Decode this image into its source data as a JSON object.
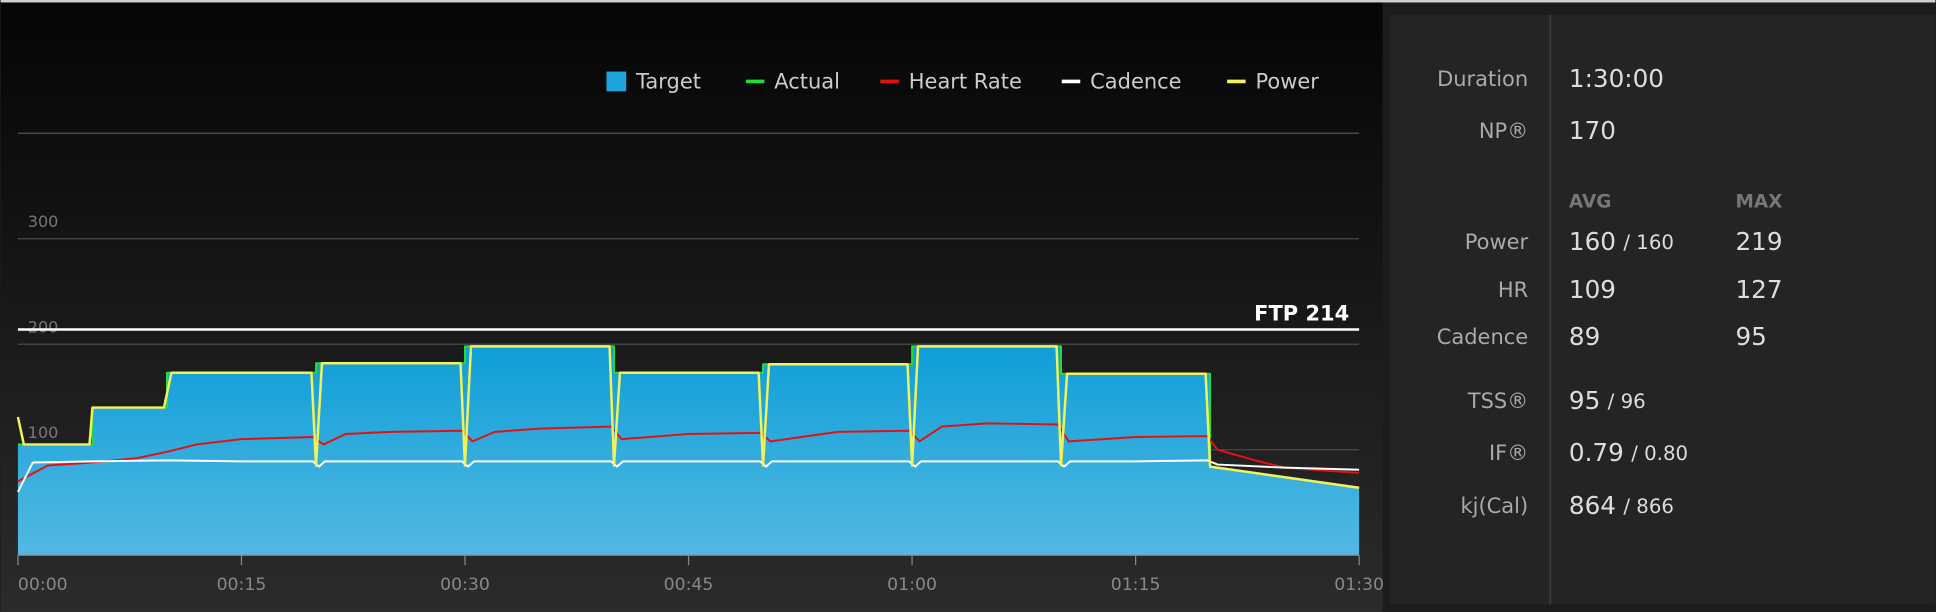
{
  "chart_data": {
    "type": "line",
    "xlim": [
      0,
      90
    ],
    "xticks": [
      {
        "value": 0,
        "label": "00:00"
      },
      {
        "value": 15,
        "label": "00:15"
      },
      {
        "value": 30,
        "label": "00:30"
      },
      {
        "value": 45,
        "label": "00:45"
      },
      {
        "value": 60,
        "label": "01:00"
      },
      {
        "value": 75,
        "label": "01:15"
      },
      {
        "value": 90,
        "label": "01:30"
      }
    ],
    "ylim": [
      0,
      400
    ],
    "yticks": [
      100,
      200,
      300
    ],
    "grid": true,
    "legend": "top-right",
    "ftp": {
      "value": 214,
      "label": "FTP 214"
    },
    "series": [
      {
        "name": "Target",
        "style": "area",
        "color": "#1ea2da",
        "x": [
          0,
          5,
          5,
          10,
          10,
          20,
          20,
          30,
          30,
          40,
          40,
          50,
          50,
          60,
          60,
          70,
          70,
          80,
          80,
          90
        ],
        "values": [
          105,
          105,
          140,
          140,
          173,
          173,
          182,
          182,
          198,
          198,
          173,
          173,
          181,
          181,
          198,
          198,
          172,
          172,
          84,
          64
        ]
      },
      {
        "name": "Actual",
        "style": "line",
        "color": "#22dd33",
        "x": [
          0,
          5,
          5,
          10,
          10,
          20,
          20,
          30,
          30,
          40,
          40,
          50,
          50,
          60,
          60,
          70,
          70,
          80,
          80,
          90
        ],
        "values": [
          105,
          105,
          140,
          140,
          173,
          173,
          182,
          182,
          198,
          198,
          173,
          173,
          181,
          181,
          198,
          198,
          172,
          172,
          84,
          64
        ]
      },
      {
        "name": "Heart Rate",
        "style": "line",
        "color": "#e31212",
        "x": [
          0,
          2,
          5,
          8,
          10,
          12,
          15,
          19.8,
          20.5,
          22,
          25,
          29.8,
          30.5,
          32,
          35,
          39.8,
          40.5,
          45,
          49.8,
          50.5,
          55,
          59.8,
          60.5,
          62,
          65,
          69.8,
          70.5,
          75,
          79.8,
          80.5,
          83,
          85,
          88,
          90
        ],
        "values": [
          70,
          85,
          88,
          92,
          98,
          105,
          110,
          112,
          105,
          115,
          117,
          118,
          108,
          117,
          120,
          122,
          110,
          115,
          116,
          108,
          117,
          118,
          108,
          122,
          125,
          124,
          108,
          112,
          113,
          100,
          90,
          83,
          80,
          78
        ]
      },
      {
        "name": "Cadence",
        "style": "line",
        "color": "#ffffff",
        "x": [
          0,
          1,
          5,
          10,
          15,
          19.8,
          20.2,
          20.6,
          25,
          29.8,
          30.2,
          30.6,
          35,
          39.8,
          40.2,
          40.6,
          45,
          49.8,
          50.2,
          50.6,
          55,
          59.8,
          60.2,
          60.6,
          65,
          69.8,
          70.2,
          70.6,
          75,
          79.8,
          80.5,
          85,
          90
        ],
        "values": [
          60,
          88,
          89,
          90,
          89,
          89,
          84,
          89,
          89,
          89,
          84,
          89,
          89,
          89,
          84,
          89,
          89,
          89,
          84,
          89,
          89,
          89,
          84,
          89,
          89,
          89,
          84,
          89,
          89,
          90,
          86,
          83,
          81
        ]
      },
      {
        "name": "Power",
        "style": "line",
        "color": "#f2f25a",
        "x": [
          0,
          0.4,
          4.8,
          5,
          9.8,
          10.3,
          19.7,
          20,
          20.4,
          29.7,
          30,
          30.4,
          39.7,
          40,
          40.4,
          49.7,
          50,
          50.4,
          59.7,
          60,
          60.4,
          69.7,
          70,
          70.4,
          79.7,
          80,
          90
        ],
        "values": [
          131,
          105,
          105,
          140,
          140,
          173,
          173,
          85,
          182,
          182,
          85,
          198,
          198,
          85,
          173,
          173,
          85,
          181,
          181,
          85,
          198,
          198,
          85,
          172,
          172,
          84,
          64
        ]
      }
    ]
  },
  "stats": {
    "headers": [
      "AVG",
      "MAX"
    ],
    "rows": [
      {
        "label": "Duration",
        "value": "1:30:00"
      },
      {
        "label": "NP®",
        "value": "170"
      },
      {
        "label": "Power",
        "value": "160",
        "secondary": "/ 160",
        "max": "219"
      },
      {
        "label": "HR",
        "value": "109",
        "max": "127"
      },
      {
        "label": "Cadence",
        "value": "89",
        "max": "95"
      },
      {
        "label": "TSS®",
        "value": "95",
        "secondary": "/ 96"
      },
      {
        "label": "IF®",
        "value": "0.79",
        "secondary": "/ 0.80"
      },
      {
        "label": "kj(Cal)",
        "value": "864",
        "secondary": "/ 866"
      }
    ]
  }
}
